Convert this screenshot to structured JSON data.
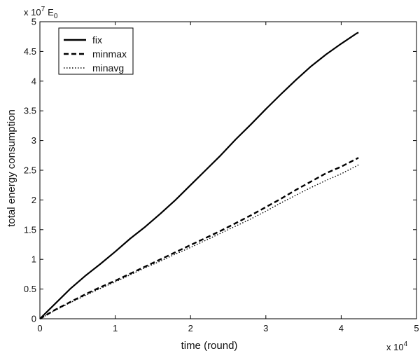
{
  "chart_data": {
    "type": "line",
    "title": "",
    "xlabel": "time (round)",
    "ylabel": "total energy consumption",
    "x_multiplier_label": "x 10",
    "x_multiplier_exp": "4",
    "y_multiplier_label": "x 10",
    "y_multiplier_exp": "7",
    "y_unit_label": "E",
    "y_unit_sub": "0",
    "xlim": [
      0,
      50000
    ],
    "ylim": [
      0,
      50000000
    ],
    "x_ticks": [
      0,
      10000,
      20000,
      30000,
      40000,
      50000
    ],
    "x_tick_labels": [
      "0",
      "1",
      "2",
      "3",
      "4",
      "5"
    ],
    "y_ticks": [
      0,
      5000000,
      10000000,
      15000000,
      20000000,
      25000000,
      30000000,
      35000000,
      40000000,
      45000000,
      50000000
    ],
    "y_tick_labels": [
      "0",
      "0.5",
      "1",
      "1.5",
      "2",
      "2.5",
      "3",
      "3.5",
      "4",
      "4.5",
      "5"
    ],
    "grid": false,
    "legend_position": "top-left",
    "series": [
      {
        "name": "fix",
        "style": "solid",
        "color": "#000000",
        "x": [
          0,
          2000,
          4000,
          6000,
          8000,
          10000,
          12000,
          14000,
          16000,
          18000,
          20000,
          22000,
          24000,
          26000,
          28000,
          30000,
          32000,
          34000,
          36000,
          38000,
          40000,
          42000,
          42300
        ],
        "y": [
          0,
          2500000,
          5000000,
          7200000,
          9200000,
          11300000,
          13500000,
          15500000,
          17700000,
          20000000,
          22500000,
          25000000,
          27500000,
          30200000,
          32700000,
          35300000,
          37800000,
          40200000,
          42500000,
          44500000,
          46300000,
          48000000,
          48200000
        ]
      },
      {
        "name": "minmax",
        "style": "dashed",
        "color": "#000000",
        "x": [
          0,
          2000,
          4000,
          6000,
          8000,
          10000,
          12000,
          14000,
          16000,
          18000,
          20000,
          22000,
          24000,
          26000,
          28000,
          30000,
          32000,
          34000,
          36000,
          38000,
          40000,
          42000,
          42300
        ],
        "y": [
          0,
          1500000,
          2800000,
          4100000,
          5300000,
          6400000,
          7600000,
          8800000,
          10000000,
          11200000,
          12400000,
          13600000,
          14800000,
          16100000,
          17400000,
          18800000,
          20200000,
          21700000,
          23100000,
          24500000,
          25600000,
          26900000,
          27100000
        ]
      },
      {
        "name": "minavg",
        "style": "dotted",
        "color": "#000000",
        "x": [
          0,
          2000,
          4000,
          6000,
          8000,
          10000,
          12000,
          14000,
          16000,
          18000,
          20000,
          22000,
          24000,
          26000,
          28000,
          30000,
          32000,
          34000,
          36000,
          38000,
          40000,
          42000,
          42300
        ],
        "y": [
          0,
          1400000,
          2700000,
          3900000,
          5100000,
          6200000,
          7400000,
          8600000,
          9700000,
          10900000,
          12000000,
          13200000,
          14400000,
          15600000,
          16800000,
          18100000,
          19500000,
          20800000,
          22100000,
          23300000,
          24400000,
          25700000,
          25900000
        ]
      }
    ]
  }
}
